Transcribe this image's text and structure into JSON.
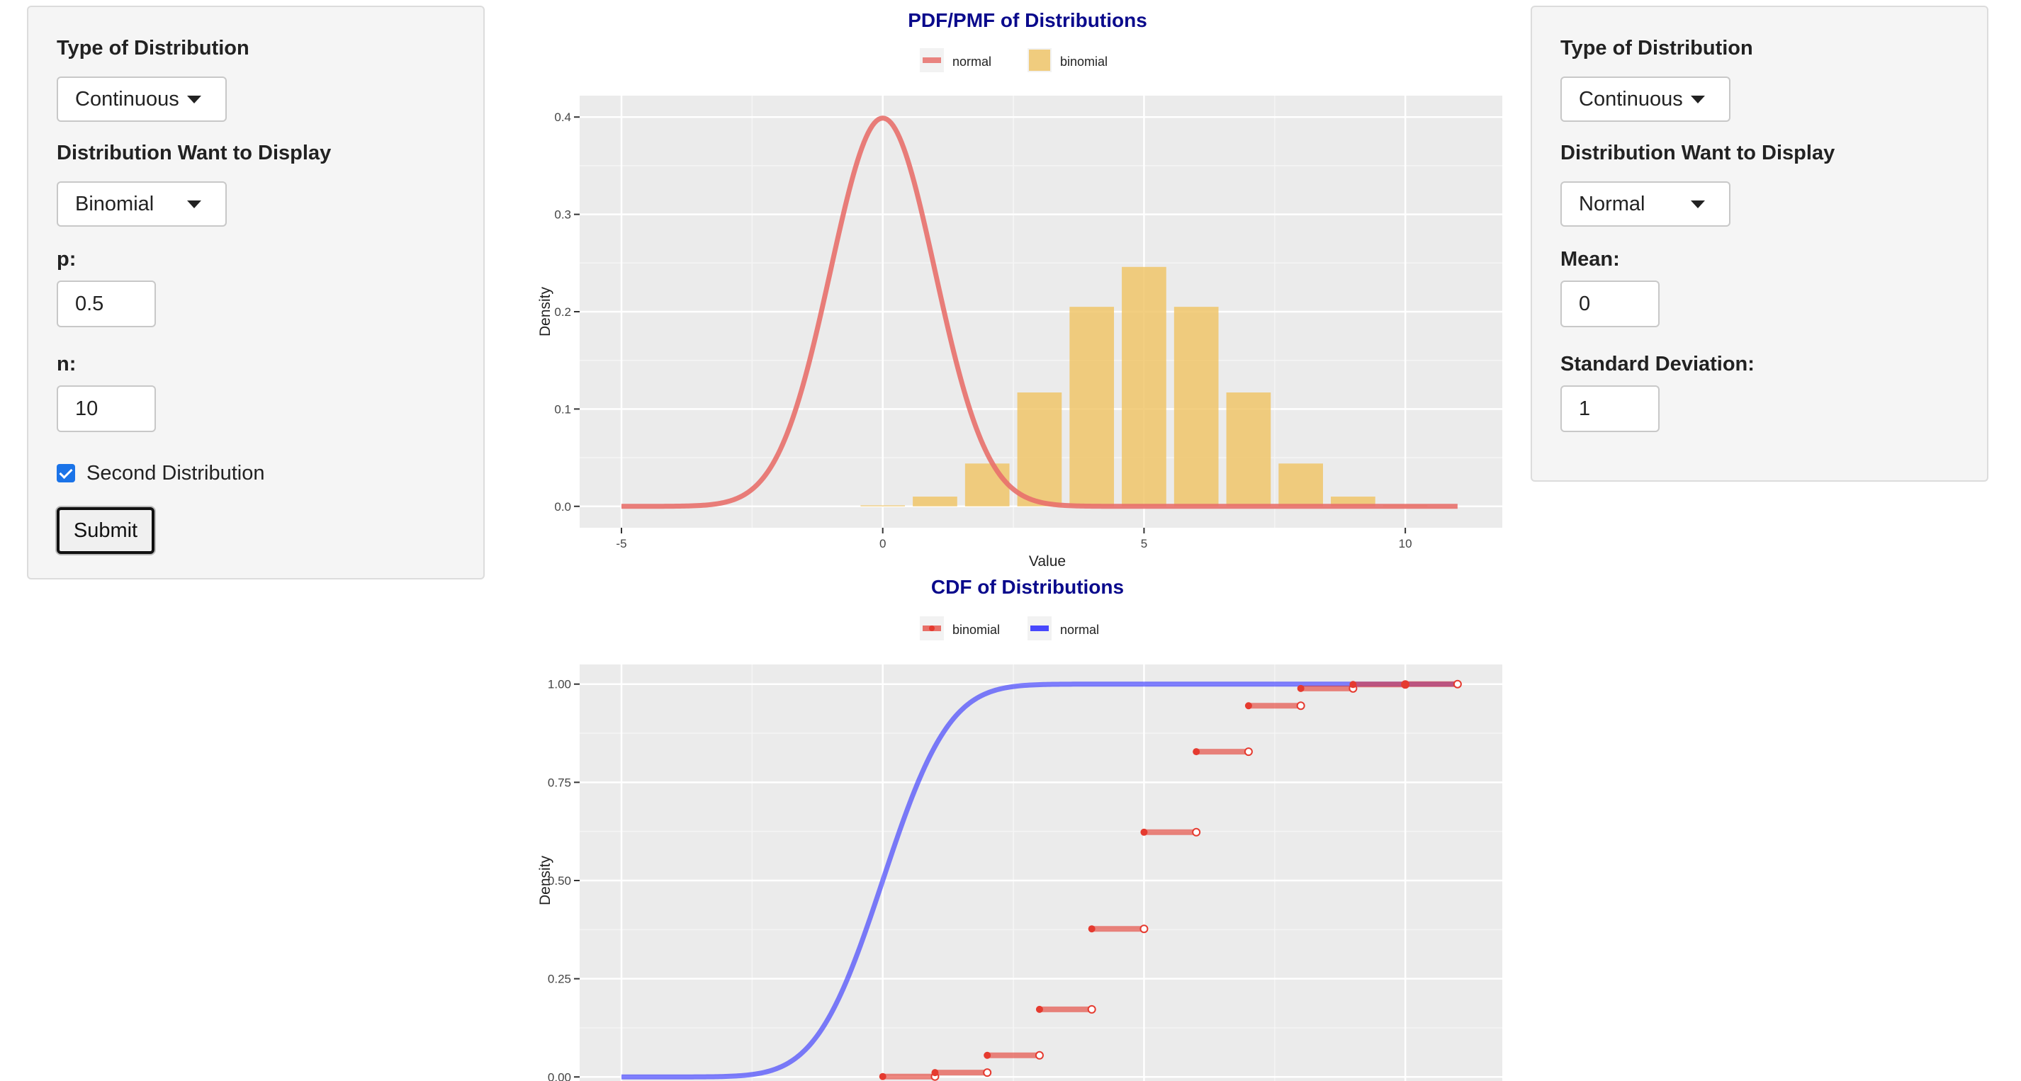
{
  "left_panel": {
    "type_label": "Type of Distribution",
    "type_value": "Continuous",
    "dist_label": "Distribution Want to Display",
    "dist_value": "Binomial",
    "p_label": "p:",
    "p_value": "0.5",
    "n_label": "n:",
    "n_value": "10",
    "second_dist_label": "Second Distribution",
    "second_dist_checked": true,
    "submit_label": "Submit"
  },
  "right_panel": {
    "type_label": "Type of Distribution",
    "type_value": "Continuous",
    "dist_label": "Distribution Want to Display",
    "dist_value": "Normal",
    "mean_label": "Mean:",
    "mean_value": "0",
    "sd_label": "Standard Deviation:",
    "sd_value": "1"
  },
  "colors": {
    "normal_pdf": "#e8706b",
    "binomial_pmf": "#f0c56a",
    "binomial_cdf": "#e53a2f",
    "normal_cdf": "#2b2bff",
    "plot_bg": "#ebebeb",
    "title": "#0a0a8c"
  },
  "chart_data": [
    {
      "type": "line",
      "title": "PDF/PMF of Distributions",
      "xlabel": "Value",
      "ylabel": "Density",
      "xlim": [
        -5,
        11
      ],
      "ylim": [
        0,
        0.4
      ],
      "x_ticks": [
        "-5",
        "0",
        "5",
        "10"
      ],
      "y_ticks": [
        "0.0",
        "0.1",
        "0.2",
        "0.3",
        "0.4"
      ],
      "legend": [
        "normal",
        "binomial"
      ],
      "legend_position": "top",
      "grid": true,
      "series": [
        {
          "name": "normal",
          "kind": "density",
          "mean": 0,
          "sd": 1,
          "x_range": [
            -5,
            11
          ]
        },
        {
          "name": "binomial",
          "kind": "bar",
          "x": [
            0,
            1,
            2,
            3,
            4,
            5,
            6,
            7,
            8,
            9,
            10
          ],
          "values": [
            0.001,
            0.01,
            0.044,
            0.117,
            0.205,
            0.246,
            0.205,
            0.117,
            0.044,
            0.01,
            0.001
          ]
        }
      ]
    },
    {
      "type": "line",
      "title": "CDF of Distributions",
      "ylabel": "Density",
      "xlim": [
        -5,
        11
      ],
      "ylim": [
        0,
        1
      ],
      "y_ticks": [
        "0.00",
        "0.25",
        "0.50",
        "0.75",
        "1.00"
      ],
      "legend": [
        "binomial",
        "normal"
      ],
      "legend_position": "top",
      "grid": true,
      "series": [
        {
          "name": "binomial",
          "kind": "step",
          "x": [
            0,
            1,
            2,
            3,
            4,
            5,
            6,
            7,
            8,
            9,
            10
          ],
          "values": [
            0.001,
            0.011,
            0.055,
            0.172,
            0.377,
            0.623,
            0.828,
            0.945,
            0.989,
            0.999,
            1.0
          ]
        },
        {
          "name": "normal",
          "kind": "cdf",
          "mean": 0,
          "sd": 1,
          "x_range": [
            -5,
            11
          ]
        }
      ]
    }
  ]
}
